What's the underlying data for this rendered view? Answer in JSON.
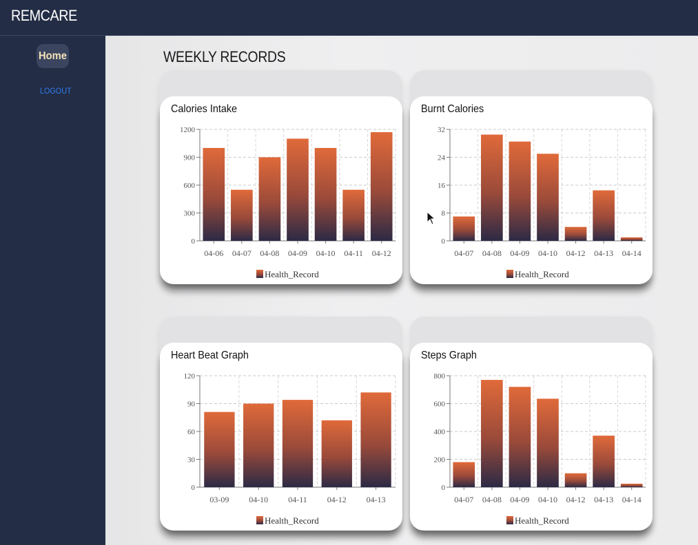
{
  "app": {
    "title": "REMCARE"
  },
  "sidebar": {
    "home_label": "Home",
    "logout_label": "LOGOUT"
  },
  "main": {
    "page_title": "WEEKLY RECORDS"
  },
  "colors": {
    "bar_top": "#e06a3a",
    "bar_bottom": "#2c2a45",
    "header_bg": "#232d45",
    "logout": "#2e7df0"
  },
  "chart_data": [
    {
      "type": "bar",
      "title": "Calories Intake",
      "categories": [
        "04-06",
        "04-07",
        "04-08",
        "04-09",
        "04-10",
        "04-11",
        "04-12"
      ],
      "values": [
        1000,
        550,
        900,
        1100,
        1000,
        550,
        1170
      ],
      "ylim": [
        0,
        1200
      ],
      "yticks": [
        0,
        300,
        600,
        900,
        1200
      ],
      "legend": "Health_Record",
      "grid": true
    },
    {
      "type": "bar",
      "title": "Burnt Calories",
      "categories": [
        "04-07",
        "04-08",
        "04-09",
        "04-10",
        "04-12",
        "04-13",
        "04-14"
      ],
      "values": [
        7,
        30.5,
        28.5,
        25,
        4,
        14.5,
        1
      ],
      "ylim": [
        0,
        32
      ],
      "yticks": [
        0,
        8,
        16,
        24,
        32
      ],
      "legend": "Health_Record",
      "grid": true
    },
    {
      "type": "bar",
      "title": "Heart Beat Graph",
      "categories": [
        "03-09",
        "04-10",
        "04-11",
        "04-12",
        "04-13"
      ],
      "values": [
        81,
        90,
        94,
        72,
        102
      ],
      "ylim": [
        0,
        120
      ],
      "yticks": [
        0,
        30,
        60,
        90,
        120
      ],
      "legend": "Health_Record",
      "grid": true
    },
    {
      "type": "bar",
      "title": "Steps Graph",
      "categories": [
        "04-07",
        "04-08",
        "04-09",
        "04-10",
        "04-12",
        "04-13",
        "04-14"
      ],
      "values": [
        180,
        770,
        720,
        635,
        100,
        370,
        25
      ],
      "ylim": [
        0,
        800
      ],
      "yticks": [
        0,
        200,
        400,
        600,
        800
      ],
      "legend": "Health_Record",
      "grid": true
    }
  ]
}
